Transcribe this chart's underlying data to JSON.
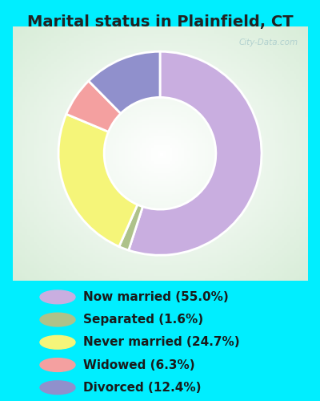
{
  "title": "Marital status in Plainfield, CT",
  "slices": [
    55.0,
    1.6,
    24.7,
    6.3,
    12.4
  ],
  "labels": [
    "Now married (55.0%)",
    "Separated (1.6%)",
    "Never married (24.7%)",
    "Widowed (6.3%)",
    "Divorced (12.4%)"
  ],
  "colors": [
    "#c9aee0",
    "#aec28a",
    "#f5f579",
    "#f4a0a0",
    "#9090cc"
  ],
  "bg_cyan": "#00eeff",
  "bg_chart_gradient_left": "#c8e8d0",
  "bg_chart_gradient_right": "#f0f8f0",
  "title_color": "#222222",
  "watermark": "City-Data.com",
  "watermark_color": "#aacccc",
  "start_angle": 90,
  "donut_width": 0.45,
  "title_fontsize": 14,
  "legend_fontsize": 11
}
